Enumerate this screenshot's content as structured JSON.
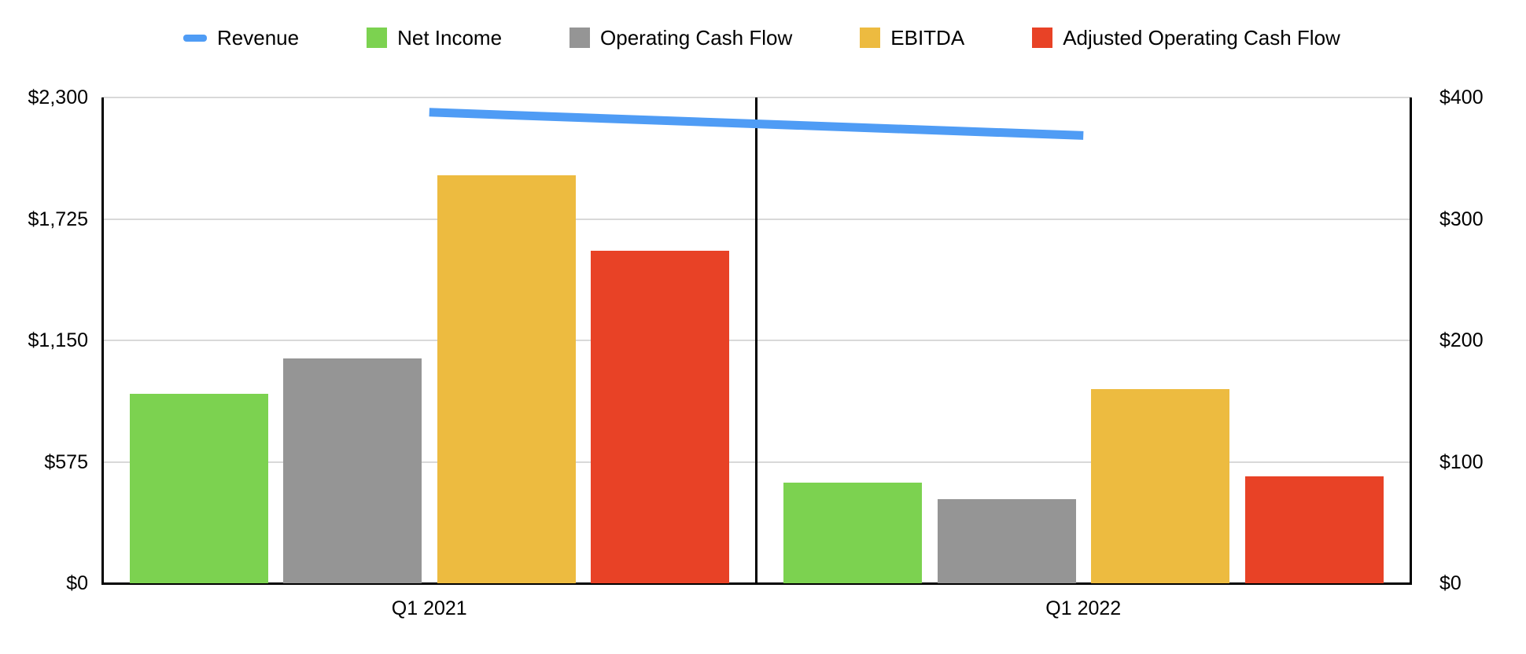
{
  "chart_data": {
    "type": "combo-bar-line",
    "title": "",
    "categories": [
      "Q1 2021",
      "Q1 2022"
    ],
    "series": [
      {
        "name": "Revenue",
        "type": "line",
        "axis": "left",
        "color": "#4f9cf5",
        "values": [
          2230,
          2120
        ]
      },
      {
        "name": "Net Income",
        "type": "bar",
        "axis": "right",
        "color": "#7cd250",
        "values": [
          156,
          83
        ]
      },
      {
        "name": "Operating Cash Flow",
        "type": "bar",
        "axis": "right",
        "color": "#959595",
        "values": [
          185,
          69
        ]
      },
      {
        "name": "EBITDA",
        "type": "bar",
        "axis": "right",
        "color": "#edbb40",
        "values": [
          336,
          160
        ]
      },
      {
        "name": "Adjusted Operating Cash Flow",
        "type": "bar",
        "axis": "right",
        "color": "#e84226",
        "values": [
          274,
          88
        ]
      }
    ],
    "left_axis": {
      "min": 0,
      "max": 2300,
      "tick_values": [
        0,
        575,
        1150,
        1725,
        2300
      ],
      "tick_labels": [
        "$0",
        "$575",
        "$1,150",
        "$1,725",
        "$2,300"
      ]
    },
    "right_axis": {
      "min": 0,
      "max": 400,
      "tick_values": [
        0,
        100,
        200,
        300,
        400
      ],
      "tick_labels": [
        "$0",
        "$100",
        "$200",
        "$300",
        "$400"
      ]
    },
    "grid": true,
    "legend_position": "top",
    "panel_dividers": true
  }
}
